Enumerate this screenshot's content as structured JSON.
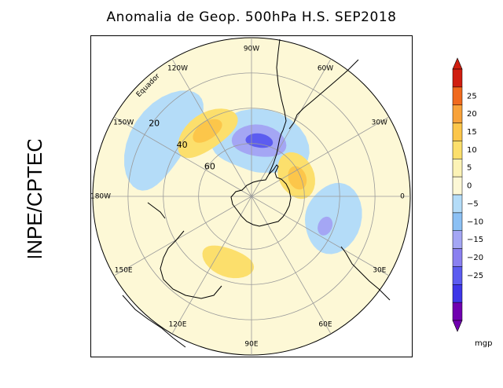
{
  "title": "Anomalia de Geop. 500hPa H.S. SEP2018",
  "side_label": "INPE/CPTEC",
  "units": "mgp",
  "longitude_labels": [
    {
      "text": "90W",
      "angle": -90
    },
    {
      "text": "60W",
      "angle": -60
    },
    {
      "text": "30W",
      "angle": -30
    },
    {
      "text": "0",
      "angle": 0
    },
    {
      "text": "30E",
      "angle": 30
    },
    {
      "text": "60E",
      "angle": 60
    },
    {
      "text": "90E",
      "angle": 90
    },
    {
      "text": "120E",
      "angle": 120
    },
    {
      "text": "150E",
      "angle": 150
    },
    {
      "text": "180W",
      "angle": 180
    },
    {
      "text": "150W",
      "angle": 210
    },
    {
      "text": "120W",
      "angle": 240
    }
  ],
  "latitude_labels": [
    {
      "text": "20",
      "lat": 20
    },
    {
      "text": "40",
      "lat": 40
    },
    {
      "text": "60",
      "lat": 60
    }
  ],
  "equator_label": "Equador",
  "colorbar": {
    "ticks": [
      "25",
      "20",
      "15",
      "10",
      "5",
      "0",
      "−5",
      "−10",
      "−15",
      "−20",
      "−25"
    ],
    "colors": [
      "#d01e10",
      "#f06a1e",
      "#f8a23a",
      "#fcc64a",
      "#fcdf6c",
      "#fcf3b6",
      "#fdf8d6",
      "#b4dcf8",
      "#8cc0f4",
      "#a4a6f4",
      "#8a80f0",
      "#5c5cf0",
      "#3e36e8",
      "#7000b0"
    ]
  },
  "anomaly_regions": [
    {
      "sign": "negative",
      "level": 1,
      "description": "Pacific trough",
      "lat": 28,
      "lon": 213,
      "dlat": 16,
      "dlon": 30
    },
    {
      "sign": "negative",
      "level": 1,
      "description": "Drake passage",
      "lat": 58,
      "lon": 280,
      "dlat": 18,
      "dlon": 50
    },
    {
      "sign": "negative",
      "level": 2,
      "description": "Drake core",
      "lat": 58,
      "lon": 278,
      "dlat": 9,
      "dlon": 28
    },
    {
      "sign": "negative",
      "level": 3,
      "description": "Drake center",
      "lat": 58,
      "lon": 278,
      "dlat": 4,
      "dlon": 14
    },
    {
      "sign": "negative",
      "level": 1,
      "description": "Indian ocean",
      "lat": 42,
      "lon": 15,
      "dlat": 16,
      "dlon": 24
    },
    {
      "sign": "negative",
      "level": 2,
      "description": "Indian core",
      "lat": 45,
      "lon": 22,
      "dlat": 4,
      "dlon": 7
    },
    {
      "sign": "positive",
      "level": 1,
      "description": "South Pacific ridge",
      "lat": 45,
      "lon": 235,
      "dlat": 10,
      "dlon": 25
    },
    {
      "sign": "positive",
      "level": 2,
      "description": "South Pacific core",
      "lat": 45,
      "lon": 236,
      "dlat": 5,
      "dlon": 12
    },
    {
      "sign": "positive",
      "level": 1,
      "description": "Weddell sea",
      "lat": 62,
      "lon": 335,
      "dlat": 10,
      "dlon": 28
    },
    {
      "sign": "positive",
      "level": 2,
      "description": "Weddell core",
      "lat": 62,
      "lon": 338,
      "dlat": 5,
      "dlon": 14
    },
    {
      "sign": "positive",
      "level": 1,
      "description": "Australia south",
      "lat": 50,
      "lon": 110,
      "dlat": 8,
      "dlon": 22
    }
  ]
}
